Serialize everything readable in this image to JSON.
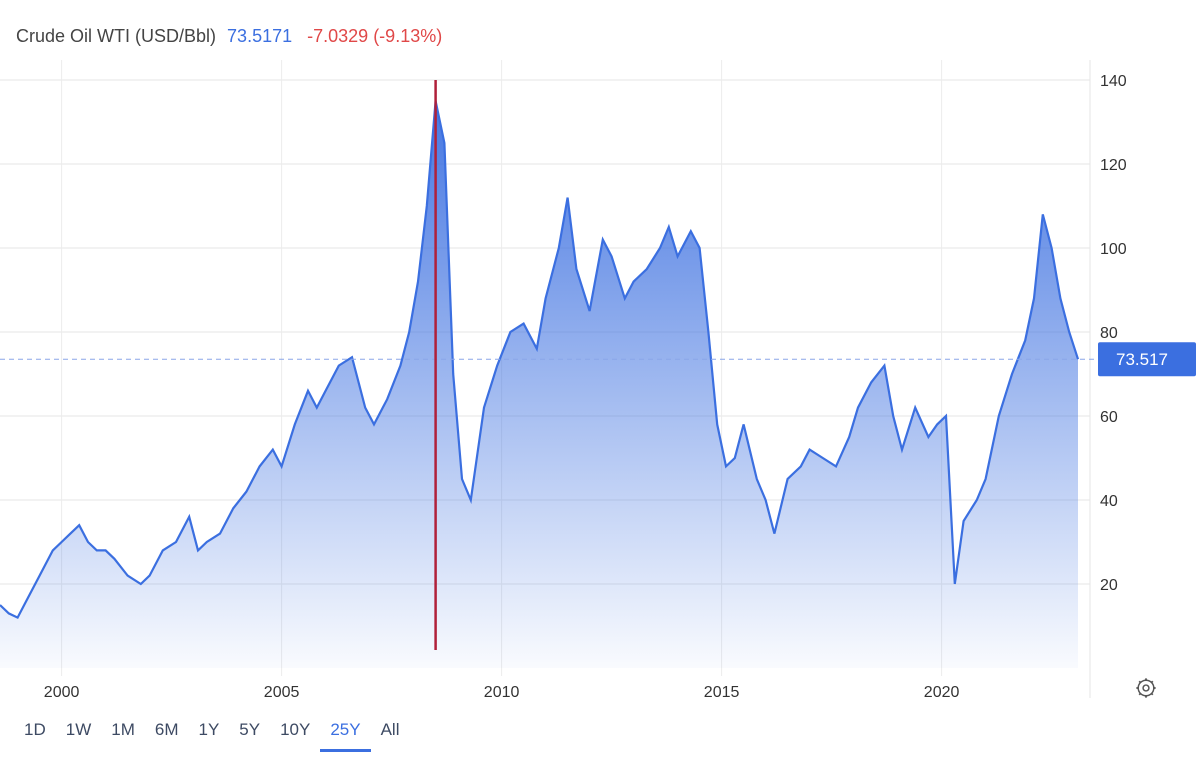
{
  "legend": {
    "name": "Crude Oil WTI (USD/Bbl)",
    "last": "73.5171",
    "change": "-7.0329 (-9.13%)"
  },
  "price_tag": "73.517",
  "ranges": [
    {
      "label": "1D",
      "active": false
    },
    {
      "label": "1W",
      "active": false
    },
    {
      "label": "1M",
      "active": false
    },
    {
      "label": "6M",
      "active": false
    },
    {
      "label": "1Y",
      "active": false
    },
    {
      "label": "5Y",
      "active": false
    },
    {
      "label": "10Y",
      "active": false
    },
    {
      "label": "25Y",
      "active": true
    },
    {
      "label": "All",
      "active": false
    }
  ],
  "icons": {
    "settings": "gear-icon"
  },
  "colors": {
    "line": "#3b6fe0",
    "fill_top": "#3b6fe0",
    "crosshair": "#b0203a",
    "price_tag_bg": "#3b6fe0",
    "change_negative": "#e04848"
  },
  "chart_data": {
    "type": "area",
    "title": "Crude Oil WTI (USD/Bbl)",
    "xlabel": "",
    "ylabel": "",
    "x_ticks": [
      2000,
      2005,
      2010,
      2015,
      2020
    ],
    "y_ticks": [
      20,
      40,
      60,
      80,
      100,
      120,
      140
    ],
    "xlim": [
      1998.6,
      2023.1
    ],
    "ylim": [
      0,
      140
    ],
    "grid": true,
    "last_value": 73.517,
    "crosshair_x": 2008.5,
    "series": [
      {
        "name": "Crude Oil WTI",
        "x": [
          1998.6,
          1998.8,
          1999.0,
          1999.2,
          1999.5,
          1999.8,
          2000.0,
          2000.2,
          2000.4,
          2000.6,
          2000.8,
          2001.0,
          2001.2,
          2001.5,
          2001.8,
          2002.0,
          2002.3,
          2002.6,
          2002.9,
          2003.1,
          2003.3,
          2003.6,
          2003.9,
          2004.2,
          2004.5,
          2004.8,
          2005.0,
          2005.3,
          2005.6,
          2005.8,
          2006.0,
          2006.3,
          2006.6,
          2006.9,
          2007.1,
          2007.4,
          2007.7,
          2007.9,
          2008.1,
          2008.3,
          2008.5,
          2008.7,
          2008.9,
          2009.1,
          2009.3,
          2009.6,
          2009.9,
          2010.2,
          2010.5,
          2010.8,
          2011.0,
          2011.3,
          2011.5,
          2011.7,
          2012.0,
          2012.3,
          2012.5,
          2012.8,
          2013.0,
          2013.3,
          2013.6,
          2013.8,
          2014.0,
          2014.3,
          2014.5,
          2014.7,
          2014.9,
          2015.1,
          2015.3,
          2015.5,
          2015.8,
          2016.0,
          2016.2,
          2016.5,
          2016.8,
          2017.0,
          2017.3,
          2017.6,
          2017.9,
          2018.1,
          2018.4,
          2018.7,
          2018.9,
          2019.1,
          2019.4,
          2019.7,
          2019.9,
          2020.1,
          2020.3,
          2020.5,
          2020.8,
          2021.0,
          2021.3,
          2021.6,
          2021.9,
          2022.1,
          2022.3,
          2022.5,
          2022.7,
          2022.9,
          2023.1
        ],
        "values": [
          15,
          13,
          12,
          16,
          22,
          28,
          30,
          32,
          34,
          30,
          28,
          28,
          26,
          22,
          20,
          22,
          28,
          30,
          36,
          28,
          30,
          32,
          38,
          42,
          48,
          52,
          48,
          58,
          66,
          62,
          66,
          72,
          74,
          62,
          58,
          64,
          72,
          80,
          92,
          110,
          135,
          125,
          70,
          45,
          40,
          62,
          72,
          80,
          82,
          76,
          88,
          100,
          112,
          95,
          85,
          102,
          98,
          88,
          92,
          95,
          100,
          105,
          98,
          104,
          100,
          80,
          58,
          48,
          50,
          58,
          45,
          40,
          32,
          45,
          48,
          52,
          50,
          48,
          55,
          62,
          68,
          72,
          60,
          52,
          62,
          55,
          58,
          60,
          20,
          35,
          40,
          45,
          60,
          70,
          78,
          88,
          108,
          100,
          88,
          80,
          73.517
        ]
      }
    ]
  }
}
